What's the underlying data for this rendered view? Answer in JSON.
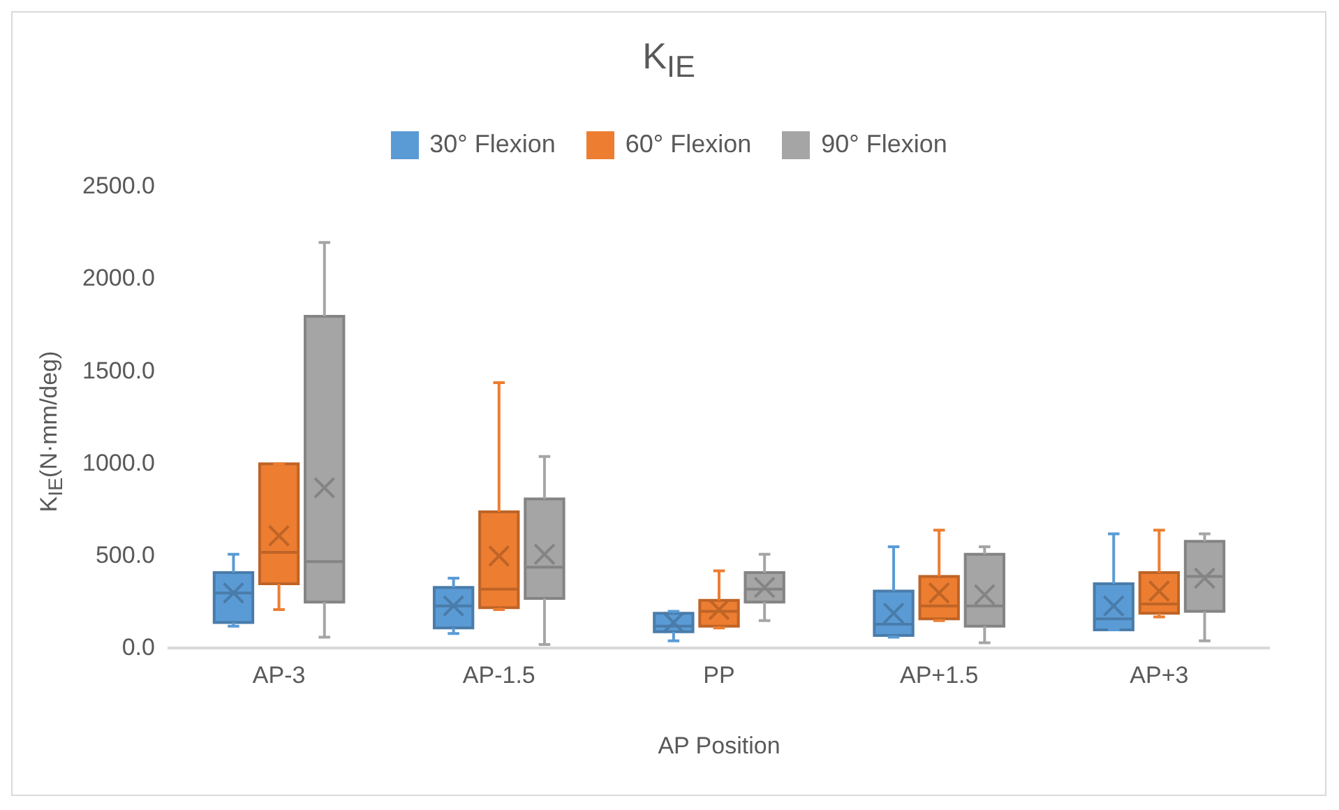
{
  "chart_data": {
    "type": "box",
    "title": "K$_{IE}$",
    "xlabel": "AP Position",
    "ylabel": "K$_{IE}$(N·mm/deg)",
    "categories": [
      "AP-3",
      "AP-1.5",
      "PP",
      "AP+1.5",
      "AP+3"
    ],
    "ylim": [
      0,
      2500
    ],
    "yticks": [
      {
        "value": 0,
        "label": "0.0"
      },
      {
        "value": 500,
        "label": "500.0"
      },
      {
        "value": 1000,
        "label": "1000.0"
      },
      {
        "value": 1500,
        "label": "1500.0"
      },
      {
        "value": 2000,
        "label": "2000.0"
      },
      {
        "value": 2500,
        "label": "2500.0"
      }
    ],
    "grid": false,
    "legend": "top",
    "marker": "cross",
    "series": [
      {
        "name": "30° Flexion",
        "color": "#5b9bd5",
        "boxes": [
          {
            "low": 120,
            "q1": 140,
            "median": 300,
            "q3": 410,
            "high": 510,
            "mean": 300
          },
          {
            "low": 80,
            "q1": 110,
            "median": 230,
            "q3": 330,
            "high": 380,
            "mean": 230
          },
          {
            "low": 40,
            "q1": 90,
            "median": 120,
            "q3": 190,
            "high": 200,
            "mean": 140
          },
          {
            "low": 60,
            "q1": 70,
            "median": 130,
            "q3": 310,
            "high": 550,
            "mean": 190
          },
          {
            "low": 100,
            "q1": 100,
            "median": 160,
            "q3": 350,
            "high": 620,
            "mean": 230
          }
        ]
      },
      {
        "name": "60° Flexion",
        "color": "#ed7d31",
        "boxes": [
          {
            "low": 210,
            "q1": 350,
            "median": 520,
            "q3": 1000,
            "high": 1000,
            "mean": 610
          },
          {
            "low": 210,
            "q1": 220,
            "median": 320,
            "q3": 740,
            "high": 1440,
            "mean": 500
          },
          {
            "low": 110,
            "q1": 120,
            "median": 200,
            "q3": 260,
            "high": 420,
            "mean": 210
          },
          {
            "low": 150,
            "q1": 160,
            "median": 230,
            "q3": 390,
            "high": 640,
            "mean": 300
          },
          {
            "low": 170,
            "q1": 190,
            "median": 240,
            "q3": 410,
            "high": 640,
            "mean": 310
          }
        ]
      },
      {
        "name": "90° Flexion",
        "color": "#a5a5a5",
        "boxes": [
          {
            "low": 60,
            "q1": 250,
            "median": 470,
            "q3": 1800,
            "high": 2200,
            "mean": 870
          },
          {
            "low": 20,
            "q1": 270,
            "median": 440,
            "q3": 810,
            "high": 1040,
            "mean": 510
          },
          {
            "low": 150,
            "q1": 250,
            "median": 320,
            "q3": 410,
            "high": 510,
            "mean": 330
          },
          {
            "low": 30,
            "q1": 120,
            "median": 230,
            "q3": 510,
            "high": 550,
            "mean": 290
          },
          {
            "low": 40,
            "q1": 200,
            "median": 390,
            "q3": 580,
            "high": 620,
            "mean": 380
          }
        ]
      }
    ]
  }
}
